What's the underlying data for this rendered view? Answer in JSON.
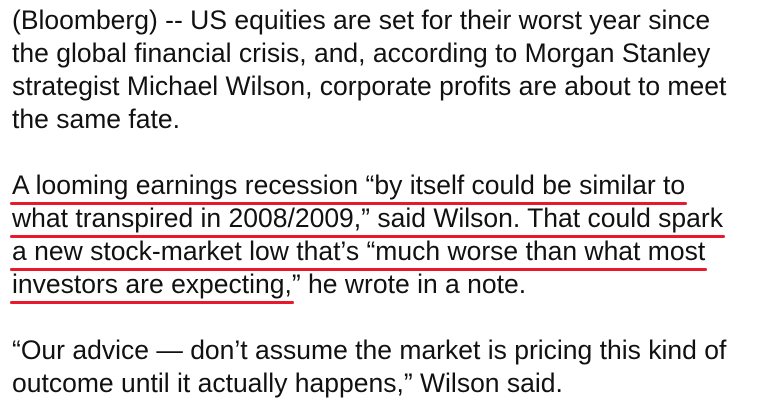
{
  "article": {
    "p1": [
      "(Bloomberg) -- US equities are set for their worst year since",
      "the global financial crisis, and, according to Morgan Stanley",
      "strategist Michael Wilson, corporate profits are about to meet",
      "the same fate."
    ],
    "p2": {
      "l1": "A looming earnings recession “by itself could be similar to",
      "l2": "what transpired in 2008/2009,” said Wilson. That could spark",
      "l3": "a new stock-market low that’s “much worse than what most",
      "l4_underlined": "investors are expecting,",
      "l4_rest": "” he wrote in a note."
    },
    "p3": [
      "“Our advice — don’t assume the market is pricing this kind of",
      "outcome until it actually happens,” Wilson said."
    ]
  },
  "colors": {
    "text": "#111111",
    "highlight_underline": "#e8192c"
  }
}
